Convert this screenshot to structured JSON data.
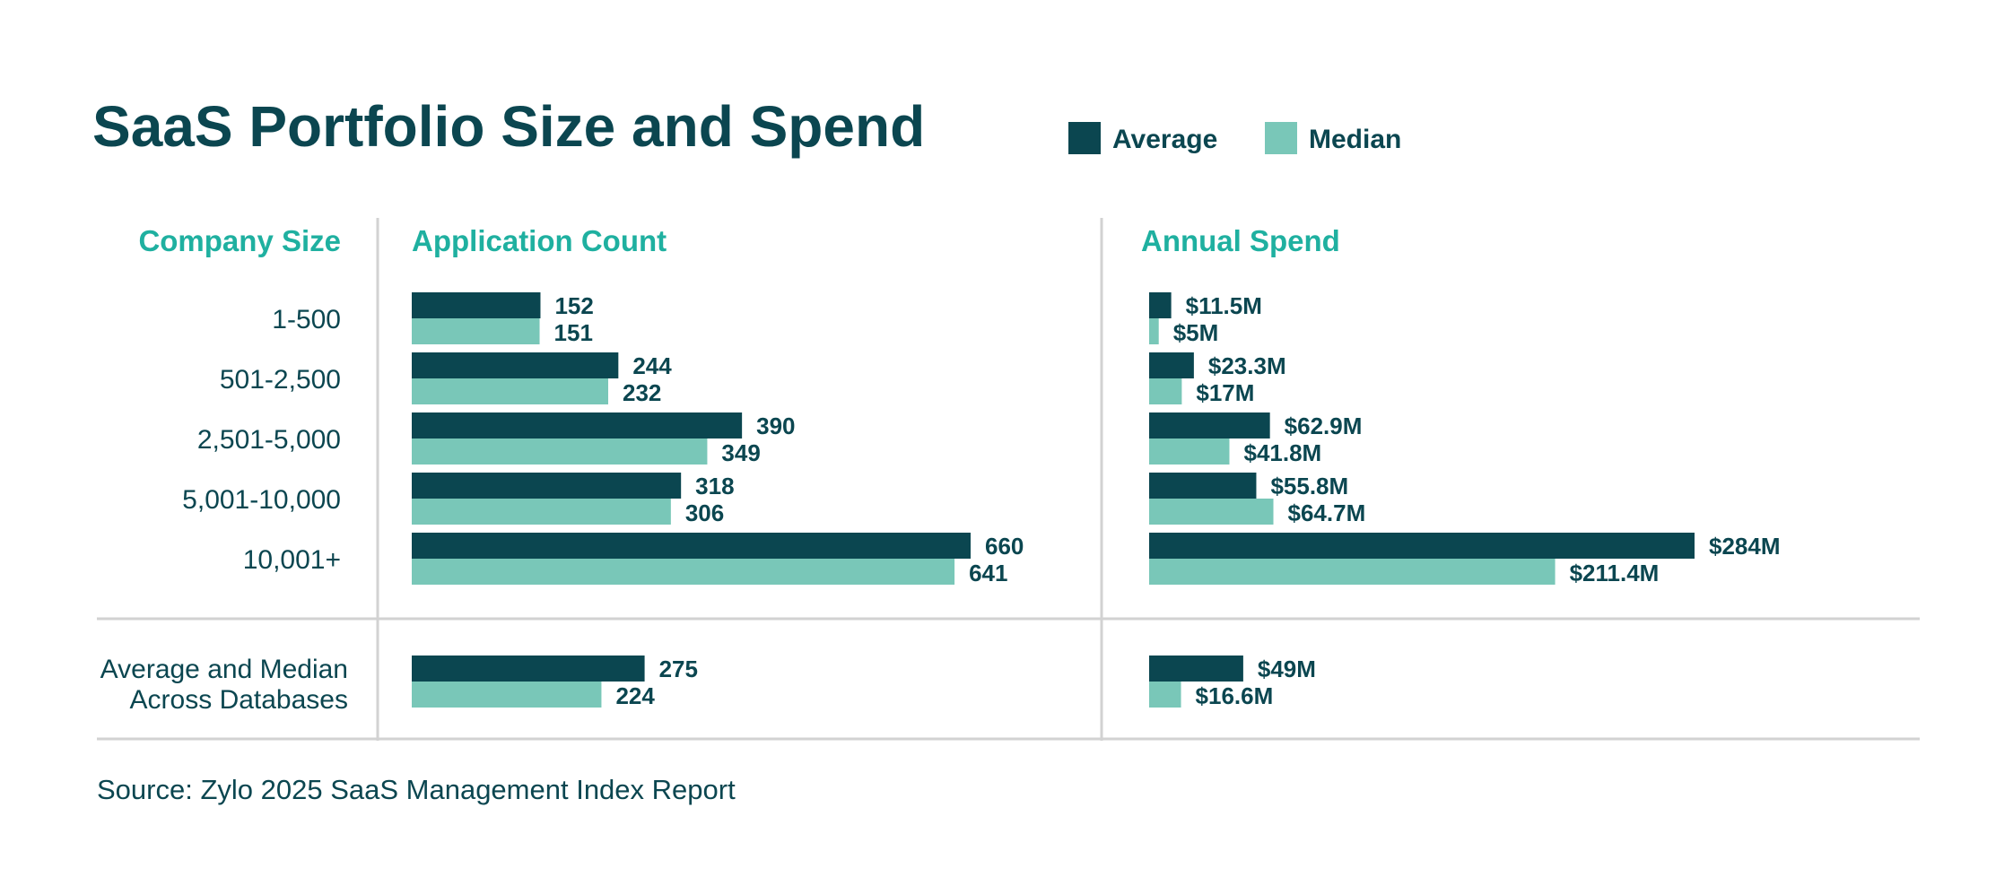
{
  "title": "SaaS Portfolio Size and Spend",
  "source": "Source: Zylo 2025 SaaS Management Index Report",
  "colors": {
    "average": "#0b4650",
    "median": "#79c7b8",
    "heading": "#1fb0a0",
    "text": "#0b4650",
    "rule": "#d2d2d2"
  },
  "legend": [
    {
      "label": "Average",
      "color": "#0b4650"
    },
    {
      "label": "Median",
      "color": "#79c7b8"
    }
  ],
  "headers": {
    "company_size": "Company Size",
    "app_count": "Application Count",
    "annual_spend": "Annual Spend"
  },
  "chart_data": [
    {
      "type": "bar",
      "orientation": "horizontal",
      "title": "Application Count",
      "categories": [
        "1-500",
        "501-2,500",
        "2,501-5,000",
        "5,001-10,000",
        "10,001+",
        "Average and Median Across Databases"
      ],
      "series": [
        {
          "name": "Average",
          "values": [
            152,
            244,
            390,
            318,
            660,
            275
          ],
          "labels": [
            "152",
            "244",
            "390",
            "318",
            "660",
            "275"
          ]
        },
        {
          "name": "Median",
          "values": [
            151,
            232,
            349,
            306,
            641,
            224
          ],
          "labels": [
            "151",
            "232",
            "349",
            "306",
            "641",
            "224"
          ]
        }
      ],
      "xlim": [
        0,
        660
      ]
    },
    {
      "type": "bar",
      "orientation": "horizontal",
      "title": "Annual Spend",
      "categories": [
        "1-500",
        "501-2,500",
        "2,501-5,000",
        "5,001-10,000",
        "10,001+",
        "Average and Median Across Databases"
      ],
      "series": [
        {
          "name": "Average",
          "values": [
            11.5,
            23.3,
            62.9,
            55.8,
            284,
            49
          ],
          "labels": [
            "$11.5M",
            "$23.3M",
            "$62.9M",
            "$55.8M",
            "$284M",
            "$49M"
          ]
        },
        {
          "name": "Median",
          "values": [
            5,
            17,
            41.8,
            64.7,
            211.4,
            16.6
          ],
          "labels": [
            "$5M",
            "$17M",
            "$41.8M",
            "$64.7M",
            "$211.4M",
            "$16.6M"
          ]
        }
      ],
      "xlim": [
        0,
        284
      ]
    }
  ]
}
